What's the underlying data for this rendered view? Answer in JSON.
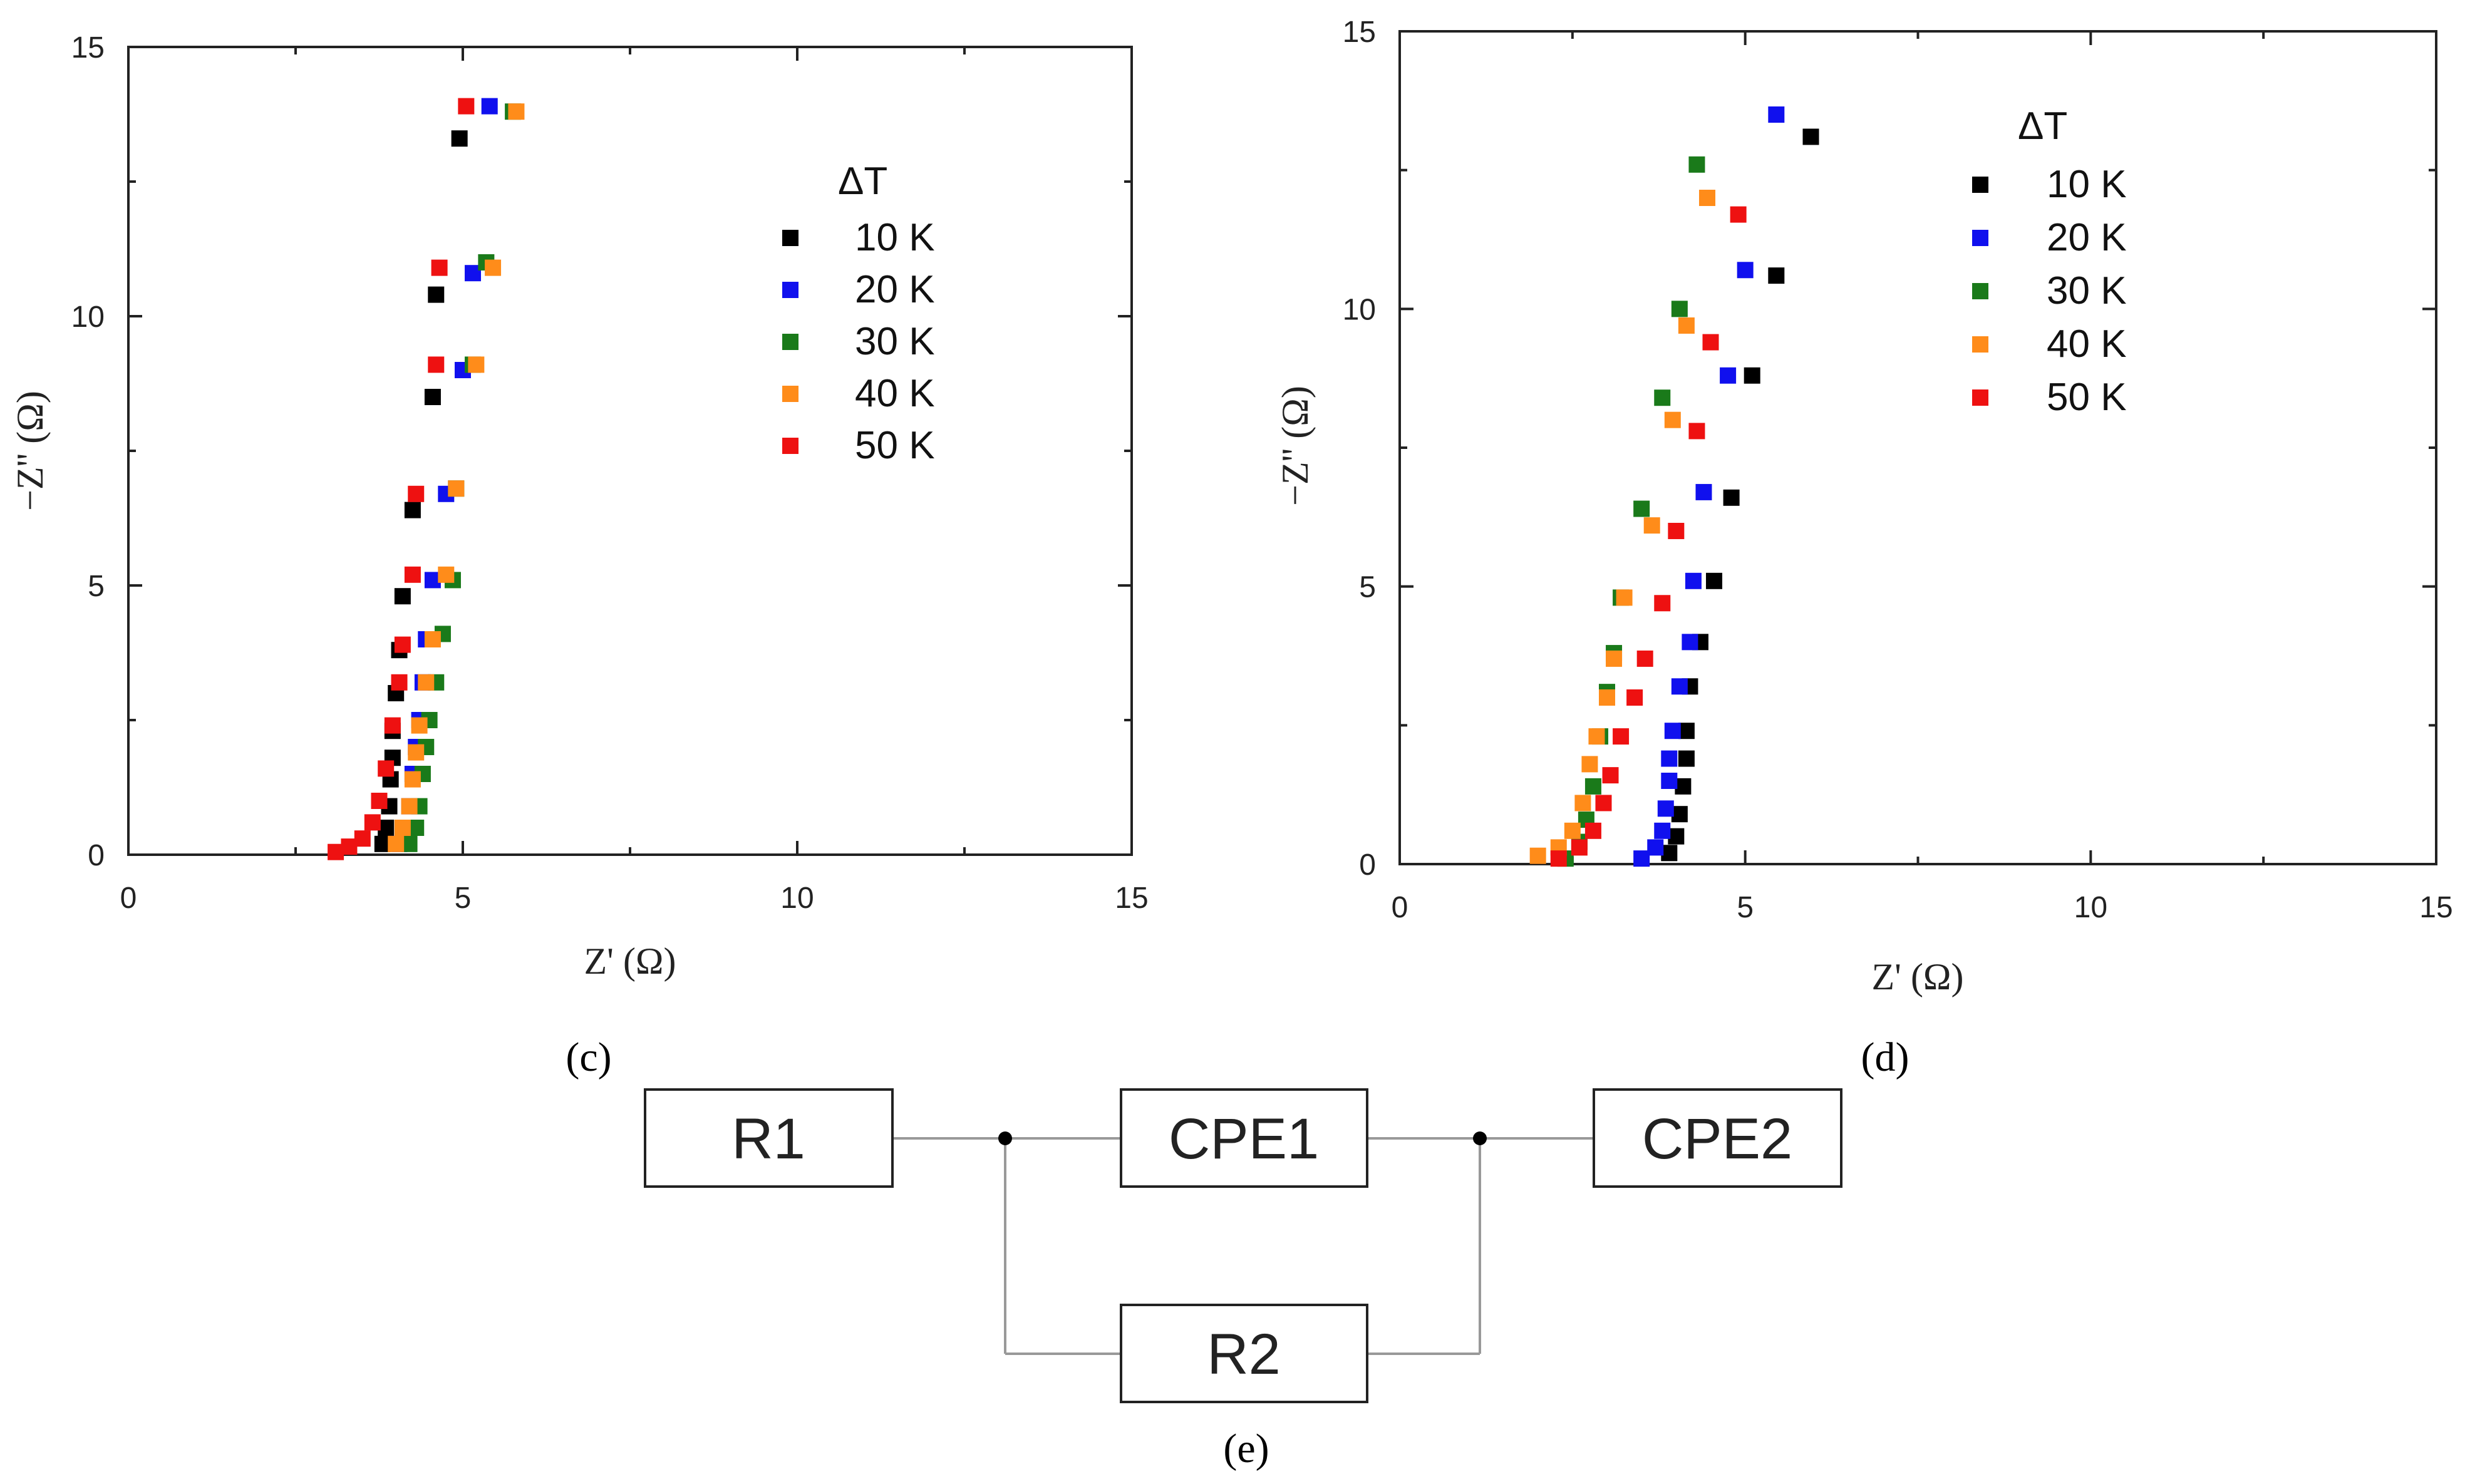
{
  "panels": {
    "c": "(c)",
    "d": "(d)",
    "e": "(e)"
  },
  "chart_data": [
    {
      "type": "scatter",
      "id": "c",
      "title": "",
      "xlabel": "Z' (Ω)",
      "ylabel": "−Z'' (Ω)",
      "xlim": [
        0,
        15
      ],
      "ylim": [
        0,
        15
      ],
      "xticks": [
        "0",
        "5",
        "10",
        "15"
      ],
      "yticks": [
        "0",
        "5",
        "10",
        "15"
      ],
      "legend_title": "ΔT",
      "series": [
        {
          "name": "10 K",
          "color": "#000000",
          "points": [
            [
              3.8,
              0.2
            ],
            [
              3.85,
              0.5
            ],
            [
              3.9,
              0.9
            ],
            [
              3.92,
              1.4
            ],
            [
              3.95,
              1.8
            ],
            [
              3.95,
              2.3
            ],
            [
              4.0,
              3.0
            ],
            [
              4.05,
              3.8
            ],
            [
              4.1,
              4.8
            ],
            [
              4.25,
              6.4
            ],
            [
              4.55,
              8.5
            ],
            [
              4.6,
              10.4
            ],
            [
              4.95,
              13.3
            ]
          ]
        },
        {
          "name": "20 K",
          "color": "#1010ee",
          "points": [
            [
              4.05,
              0.2
            ],
            [
              4.15,
              0.5
            ],
            [
              4.2,
              0.9
            ],
            [
              4.25,
              1.5
            ],
            [
              4.3,
              2.0
            ],
            [
              4.35,
              2.5
            ],
            [
              4.4,
              3.2
            ],
            [
              4.45,
              4.0
            ],
            [
              4.55,
              5.1
            ],
            [
              4.75,
              6.7
            ],
            [
              5.0,
              9.0
            ],
            [
              5.15,
              10.8
            ],
            [
              5.4,
              13.9
            ]
          ]
        },
        {
          "name": "30 K",
          "color": "#1a7a1a",
          "points": [
            [
              4.2,
              0.2
            ],
            [
              4.3,
              0.5
            ],
            [
              4.35,
              0.9
            ],
            [
              4.4,
              1.5
            ],
            [
              4.45,
              2.0
            ],
            [
              4.5,
              2.5
            ],
            [
              4.6,
              3.2
            ],
            [
              4.7,
              4.1
            ],
            [
              4.85,
              5.1
            ],
            [
              4.9,
              6.8
            ],
            [
              5.15,
              9.1
            ],
            [
              5.35,
              11.0
            ],
            [
              5.75,
              13.8
            ]
          ]
        },
        {
          "name": "40 K",
          "color": "#ff8c1a",
          "points": [
            [
              4.0,
              0.2
            ],
            [
              4.1,
              0.5
            ],
            [
              4.2,
              0.9
            ],
            [
              4.25,
              1.4
            ],
            [
              4.3,
              1.9
            ],
            [
              4.35,
              2.4
            ],
            [
              4.45,
              3.2
            ],
            [
              4.55,
              4.0
            ],
            [
              4.75,
              5.2
            ],
            [
              4.9,
              6.8
            ],
            [
              5.2,
              9.1
            ],
            [
              5.45,
              10.9
            ],
            [
              5.8,
              13.8
            ]
          ]
        },
        {
          "name": "50 K",
          "color": "#ee1111",
          "points": [
            [
              3.1,
              0.05
            ],
            [
              3.3,
              0.15
            ],
            [
              3.5,
              0.3
            ],
            [
              3.65,
              0.6
            ],
            [
              3.75,
              1.0
            ],
            [
              3.85,
              1.6
            ],
            [
              3.95,
              2.4
            ],
            [
              4.05,
              3.2
            ],
            [
              4.1,
              3.9
            ],
            [
              4.25,
              5.2
            ],
            [
              4.3,
              6.7
            ],
            [
              4.6,
              9.1
            ],
            [
              4.65,
              10.9
            ],
            [
              5.05,
              13.9
            ]
          ]
        }
      ]
    },
    {
      "type": "scatter",
      "id": "d",
      "title": "",
      "xlabel": "Z' (Ω)",
      "ylabel": "−Z'' (Ω)",
      "xlim": [
        0,
        15
      ],
      "ylim": [
        0,
        15
      ],
      "xticks": [
        "0",
        "5",
        "10",
        "15"
      ],
      "yticks": [
        "0",
        "5",
        "10",
        "15"
      ],
      "legend_title": "ΔT",
      "series": [
        {
          "name": "10 K",
          "color": "#000000",
          "points": [
            [
              3.9,
              0.2
            ],
            [
              4.0,
              0.5
            ],
            [
              4.05,
              0.9
            ],
            [
              4.1,
              1.4
            ],
            [
              4.15,
              1.9
            ],
            [
              4.15,
              2.4
            ],
            [
              4.2,
              3.2
            ],
            [
              4.35,
              4.0
            ],
            [
              4.55,
              5.1
            ],
            [
              4.8,
              6.6
            ],
            [
              5.1,
              8.8
            ],
            [
              5.45,
              10.6
            ],
            [
              5.95,
              13.1
            ]
          ]
        },
        {
          "name": "20 K",
          "color": "#1010ee",
          "points": [
            [
              3.5,
              0.1
            ],
            [
              3.7,
              0.3
            ],
            [
              3.8,
              0.6
            ],
            [
              3.85,
              1.0
            ],
            [
              3.9,
              1.5
            ],
            [
              3.9,
              1.9
            ],
            [
              3.95,
              2.4
            ],
            [
              4.05,
              3.2
            ],
            [
              4.2,
              4.0
            ],
            [
              4.25,
              5.1
            ],
            [
              4.4,
              6.7
            ],
            [
              4.75,
              8.8
            ],
            [
              5.0,
              10.7
            ],
            [
              5.45,
              13.5
            ]
          ]
        },
        {
          "name": "30 K",
          "color": "#1a7a1a",
          "points": [
            [
              2.4,
              0.1
            ],
            [
              2.6,
              0.4
            ],
            [
              2.7,
              0.8
            ],
            [
              2.8,
              1.4
            ],
            [
              2.9,
              2.3
            ],
            [
              3.0,
              3.1
            ],
            [
              3.1,
              3.8
            ],
            [
              3.2,
              4.8
            ],
            [
              3.5,
              6.4
            ],
            [
              3.8,
              8.4
            ],
            [
              4.05,
              10.0
            ],
            [
              4.3,
              12.6
            ]
          ]
        },
        {
          "name": "40 K",
          "color": "#ff8c1a",
          "points": [
            [
              2.0,
              0.15
            ],
            [
              2.3,
              0.3
            ],
            [
              2.5,
              0.6
            ],
            [
              2.65,
              1.1
            ],
            [
              2.75,
              1.8
            ],
            [
              2.85,
              2.3
            ],
            [
              3.0,
              3.0
            ],
            [
              3.1,
              3.7
            ],
            [
              3.25,
              4.8
            ],
            [
              3.65,
              6.1
            ],
            [
              3.95,
              8.0
            ],
            [
              4.15,
              9.7
            ],
            [
              4.45,
              12.0
            ]
          ]
        },
        {
          "name": "50 K",
          "color": "#ee1111",
          "points": [
            [
              2.3,
              0.1
            ],
            [
              2.6,
              0.3
            ],
            [
              2.8,
              0.6
            ],
            [
              2.95,
              1.1
            ],
            [
              3.05,
              1.6
            ],
            [
              3.2,
              2.3
            ],
            [
              3.4,
              3.0
            ],
            [
              3.55,
              3.7
            ],
            [
              3.8,
              4.7
            ],
            [
              4.0,
              6.0
            ],
            [
              4.3,
              7.8
            ],
            [
              4.5,
              9.4
            ],
            [
              4.9,
              11.7
            ]
          ]
        }
      ]
    }
  ],
  "circuit": {
    "r1": "R1",
    "cpe1": "CPE1",
    "cpe2": "CPE2",
    "r2": "R2"
  }
}
